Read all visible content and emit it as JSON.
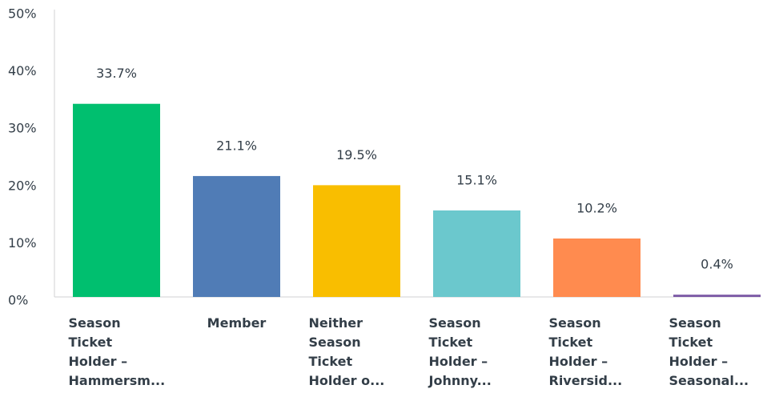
{
  "chart_data": {
    "type": "bar",
    "categories": [
      "Season Ticket Holder – Hammersm...",
      "Member",
      "Neither Season Ticket Holder o...",
      "Season Ticket Holder – Johnny...",
      "Season Ticket Holder – Riversid...",
      "Season Ticket Holder – Seasonal..."
    ],
    "values": [
      33.7,
      21.1,
      19.5,
      15.1,
      10.2,
      0.4
    ],
    "value_labels": [
      "33.7%",
      "21.1%",
      "19.5%",
      "15.1%",
      "10.2%",
      "0.4%"
    ],
    "colors": [
      "#00bf6f",
      "#507cb6",
      "#f9be00",
      "#6bc8cd",
      "#ff8b4f",
      "#7d5ba6"
    ],
    "ylim": [
      0,
      50
    ],
    "yticks": [
      {
        "value": 0,
        "label": "0%"
      },
      {
        "value": 10,
        "label": "10%"
      },
      {
        "value": 20,
        "label": "20%"
      },
      {
        "value": 30,
        "label": "30%"
      },
      {
        "value": 40,
        "label": "40%"
      },
      {
        "value": 50,
        "label": "50%"
      }
    ],
    "grid": false
  }
}
